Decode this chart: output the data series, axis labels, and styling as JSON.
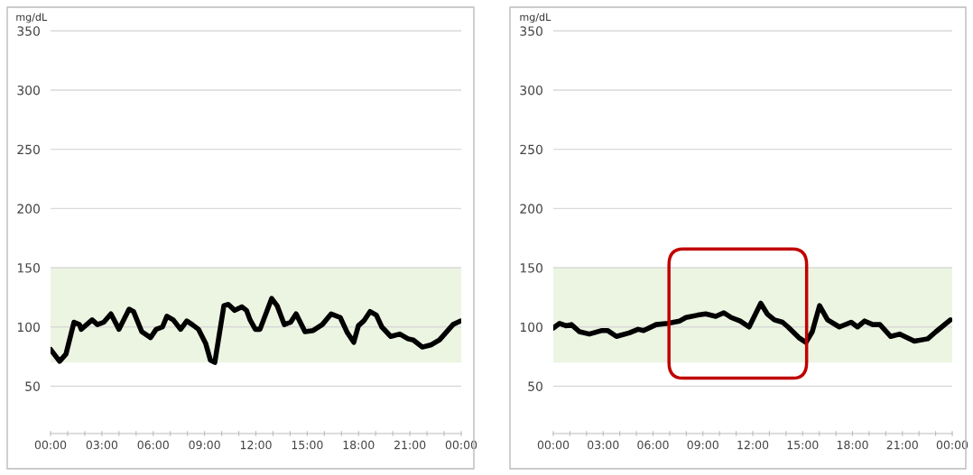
{
  "chart_data": [
    {
      "type": "line",
      "ylabel": "mg/dL",
      "ylim": [
        10,
        370
      ],
      "yticks": [
        50,
        100,
        150,
        200,
        250,
        300,
        350
      ],
      "xlim": [
        0,
        24
      ],
      "xticks": [
        {
          "value": 0,
          "label": "00:00"
        },
        {
          "value": 1,
          "label": null
        },
        {
          "value": 2,
          "label": null
        },
        {
          "value": 3,
          "label": "03:00"
        },
        {
          "value": 4,
          "label": null
        },
        {
          "value": 5,
          "label": null
        },
        {
          "value": 6,
          "label": "06:00"
        },
        {
          "value": 7,
          "label": null
        },
        {
          "value": 8,
          "label": null
        },
        {
          "value": 9,
          "label": "09:00"
        },
        {
          "value": 10,
          "label": null
        },
        {
          "value": 11,
          "label": null
        },
        {
          "value": 12,
          "label": "12:00"
        },
        {
          "value": 13,
          "label": null
        },
        {
          "value": 14,
          "label": null
        },
        {
          "value": 15,
          "label": "15:00"
        },
        {
          "value": 16,
          "label": null
        },
        {
          "value": 17,
          "label": null
        },
        {
          "value": 18,
          "label": "18:00"
        },
        {
          "value": 19,
          "label": null
        },
        {
          "value": 20,
          "label": null
        },
        {
          "value": 21,
          "label": "21:00"
        },
        {
          "value": 22,
          "label": null
        },
        {
          "value": 23,
          "label": null
        },
        {
          "value": 24,
          "label": "00:00"
        }
      ],
      "grid": "y",
      "line_style": "solid",
      "marker": "none",
      "bands": [
        {
          "axis": "y",
          "from": 70,
          "to": 150,
          "color": "#ebf5e1"
        }
      ],
      "series": [
        {
          "color": "#000000",
          "x": [
            0,
            0.53,
            0.9,
            1.37,
            1.69,
            1.79,
            2.43,
            2.74,
            3.11,
            3.53,
            4.0,
            4.59,
            4.85,
            5.33,
            5.85,
            6.17,
            6.54,
            6.8,
            7.17,
            7.6,
            7.96,
            8.28,
            8.65,
            9.07,
            9.34,
            9.6,
            10.13,
            10.39,
            10.76,
            11.18,
            11.45,
            11.66,
            11.97,
            12.24,
            12.92,
            13.24,
            13.66,
            14.03,
            14.35,
            14.87,
            15.35,
            15.88,
            16.4,
            16.93,
            17.35,
            17.72,
            17.99,
            18.3,
            18.67,
            19.04,
            19.36,
            19.88,
            20.41,
            20.89,
            21.2,
            21.73,
            22.26,
            22.73,
            23.52,
            23.95
          ],
          "values": [
            81,
            71,
            77,
            104,
            102,
            98,
            106,
            102,
            104,
            111,
            98,
            115,
            113,
            96,
            91,
            98,
            100,
            109,
            106,
            98,
            105,
            102,
            98,
            86,
            72,
            70,
            118,
            119,
            114,
            117,
            114,
            106,
            98,
            98,
            124,
            118,
            102,
            104,
            111,
            96,
            97,
            102,
            111,
            108,
            95,
            87,
            101,
            105,
            113,
            110,
            100,
            92,
            94,
            90,
            89,
            83,
            85,
            89,
            102,
            105
          ]
        }
      ]
    },
    {
      "type": "line",
      "ylabel": "mg/dL",
      "ylim": [
        10,
        370
      ],
      "yticks": [
        50,
        100,
        150,
        200,
        250,
        300,
        350
      ],
      "xlim": [
        0,
        24
      ],
      "xticks": [
        {
          "value": 0,
          "label": "00:00"
        },
        {
          "value": 1,
          "label": null
        },
        {
          "value": 2,
          "label": null
        },
        {
          "value": 3,
          "label": "03:00"
        },
        {
          "value": 4,
          "label": null
        },
        {
          "value": 5,
          "label": null
        },
        {
          "value": 6,
          "label": "06:00"
        },
        {
          "value": 7,
          "label": null
        },
        {
          "value": 8,
          "label": null
        },
        {
          "value": 9,
          "label": "09:00"
        },
        {
          "value": 10,
          "label": null
        },
        {
          "value": 11,
          "label": null
        },
        {
          "value": 12,
          "label": "12:00"
        },
        {
          "value": 13,
          "label": null
        },
        {
          "value": 14,
          "label": null
        },
        {
          "value": 15,
          "label": "15:00"
        },
        {
          "value": 16,
          "label": null
        },
        {
          "value": 17,
          "label": null
        },
        {
          "value": 18,
          "label": "18:00"
        },
        {
          "value": 19,
          "label": null
        },
        {
          "value": 20,
          "label": null
        },
        {
          "value": 21,
          "label": "21:00"
        },
        {
          "value": 22,
          "label": null
        },
        {
          "value": 23,
          "label": null
        },
        {
          "value": 24,
          "label": "00:00"
        }
      ],
      "grid": "y",
      "line_style": "solid",
      "marker": "none",
      "bands": [
        {
          "axis": "y",
          "from": 70,
          "to": 150,
          "color": "#ebf5e1"
        }
      ],
      "series": [
        {
          "color": "#000000",
          "x": [
            0,
            0.38,
            0.76,
            1.09,
            1.57,
            2.17,
            2.93,
            3.26,
            3.8,
            4.56,
            5.1,
            5.43,
            6.19,
            6.89,
            7.6,
            7.98,
            8.69,
            9.17,
            9.77,
            10.26,
            10.7,
            11.24,
            11.78,
            12.48,
            12.87,
            13.3,
            13.79,
            14.12,
            14.77,
            15.2,
            15.58,
            16.02,
            16.5,
            17.21,
            17.92,
            18.3,
            18.73,
            19.22,
            19.65,
            20.3,
            20.85,
            21.72,
            22.53,
            23.02,
            23.89
          ],
          "values": [
            99,
            103,
            101,
            102,
            96,
            94,
            97,
            97,
            92,
            95,
            98,
            97,
            102,
            103,
            105,
            108,
            110,
            111,
            109,
            112,
            108,
            105,
            100,
            120,
            111,
            106,
            104,
            100,
            91,
            87,
            96,
            118,
            106,
            100,
            104,
            100,
            105,
            102,
            102,
            92,
            94,
            88,
            90,
            96,
            106
          ]
        }
      ]
    }
  ]
}
